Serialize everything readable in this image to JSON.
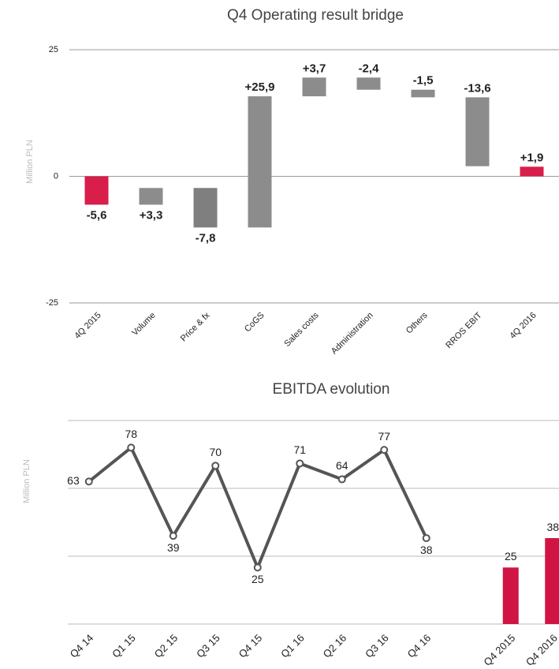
{
  "chart_data": [
    {
      "type": "waterfall",
      "title": "Q4 Operating result bridge",
      "y_label": "Million PLN",
      "categories": [
        "4Q 2015",
        "Volume",
        "Price & fx",
        "CoGS",
        "Sales costs",
        "Administration",
        "Others",
        "RROS EBIT",
        "4Q 2016"
      ],
      "values": [
        -5.6,
        3.3,
        -7.8,
        25.9,
        3.7,
        -2.4,
        -1.5,
        -13.6,
        1.9
      ],
      "value_labels": [
        "-5,6",
        "+3,3",
        "-7,8",
        "+25,9",
        "+3,7",
        "-2,4",
        "-1,5",
        "-13,6",
        "+1,9"
      ],
      "colors": [
        "#d81e4a",
        "#8c8c8c",
        "#7f7f7f",
        "#8c8c8c",
        "#8c8c8c",
        "#8c8c8c",
        "#8c8c8c",
        "#8c8c8c",
        "#d81e4a"
      ],
      "ylim": [
        -25,
        25
      ],
      "yticks": [
        -25,
        0,
        25
      ],
      "grid": true
    },
    {
      "type": "combo",
      "title": "EBITDA evolution",
      "y_label": "Million PLN",
      "categories": [
        "Q4 14",
        "Q1 15",
        "Q2 15",
        "Q3 15",
        "Q4 15",
        "Q1 16",
        "Q2 16",
        "Q3 16",
        "Q4 16",
        null,
        "Q4 2015",
        "Q4 2016"
      ],
      "series": [
        {
          "type": "line",
          "color": "#555555",
          "values": [
            63,
            78,
            39,
            70,
            25,
            71,
            64,
            77,
            38,
            null,
            null,
            null
          ],
          "label_positions": [
            "left",
            "above",
            "below",
            "above",
            "below",
            "above",
            "above",
            "above",
            "below",
            null,
            null,
            null
          ]
        },
        {
          "type": "bar",
          "color": "#d01443",
          "values": [
            null,
            null,
            null,
            null,
            null,
            null,
            null,
            null,
            null,
            null,
            25,
            38
          ]
        }
      ],
      "ylim": [
        0,
        90
      ],
      "yticks": [
        0,
        30,
        60,
        90
      ],
      "grid": true,
      "show_ytick_labels": false
    }
  ]
}
